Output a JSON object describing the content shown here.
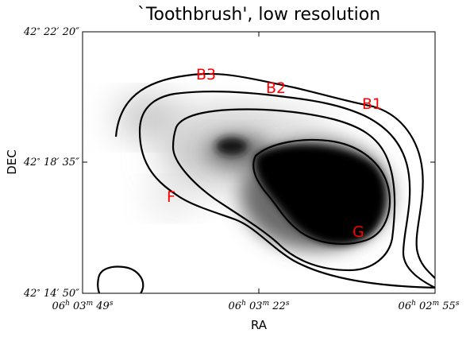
{
  "chart_data": {
    "type": "heatmap",
    "title": "`Toothbrush', low resolution",
    "xlabel": "RA",
    "ylabel": "DEC",
    "x_ticks": [
      {
        "h": "06",
        "m": "03",
        "s": "49"
      },
      {
        "h": "06",
        "m": "03",
        "s": "22"
      },
      {
        "h": "06",
        "m": "02",
        "s": "55"
      }
    ],
    "y_ticks": [
      {
        "deg": "42",
        "min": "22",
        "sec": "20"
      },
      {
        "deg": "42",
        "min": "18",
        "sec": "35"
      },
      {
        "deg": "42",
        "min": "14",
        "sec": "50"
      }
    ],
    "xlim": [
      "06h03m49s",
      "06h02m55s"
    ],
    "ylim": [
      "42°14′50″",
      "42°22′20″"
    ],
    "image": "grayscale radio intensity with black contour lines",
    "region_labels": [
      "B1",
      "B2",
      "B3",
      "F",
      "G"
    ],
    "label_color": "#ff0000",
    "contour_color": "#000000",
    "grid": false
  }
}
